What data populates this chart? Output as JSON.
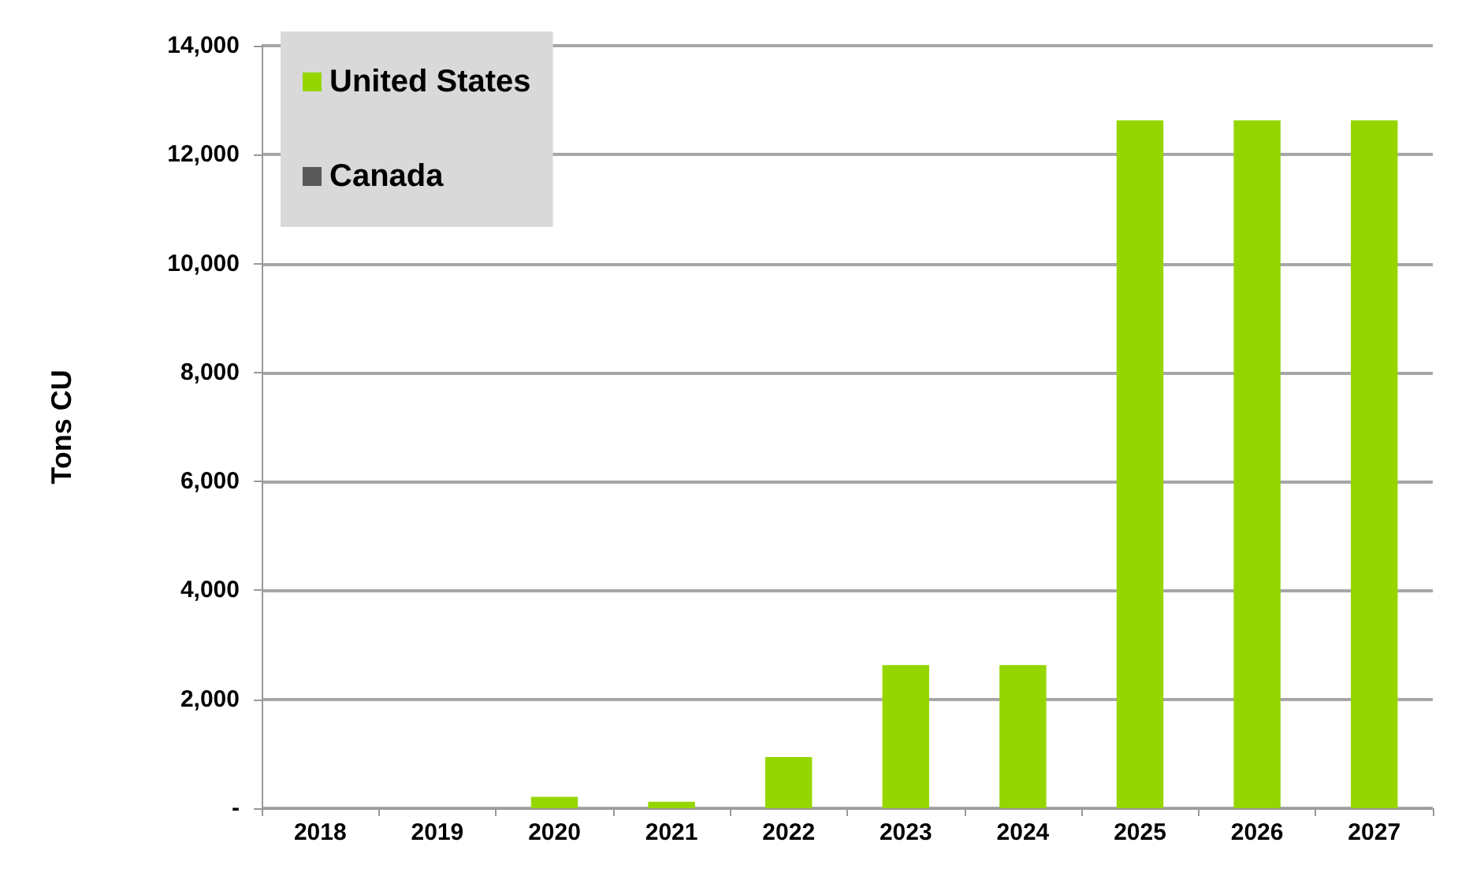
{
  "chart_data": {
    "type": "bar",
    "ylabel": "Tons CU",
    "categories": [
      "2018",
      "2019",
      "2020",
      "2021",
      "2022",
      "2023",
      "2024",
      "2025",
      "2026",
      "2027"
    ],
    "series": [
      {
        "name": "United States",
        "color": "#95d600",
        "values": [
          0,
          0,
          210,
          120,
          940,
          2630,
          2630,
          12630,
          12630,
          12630
        ]
      },
      {
        "name": "Canada",
        "color": "#595959",
        "values": [
          0,
          0,
          0,
          0,
          0,
          0,
          0,
          0,
          0,
          0
        ]
      }
    ],
    "stacked": true,
    "ylim": [
      0,
      14000
    ],
    "yticks": [
      {
        "value": 0,
        "label": "-"
      },
      {
        "value": 2000,
        "label": "2,000"
      },
      {
        "value": 4000,
        "label": "4,000"
      },
      {
        "value": 6000,
        "label": "6,000"
      },
      {
        "value": 8000,
        "label": "8,000"
      },
      {
        "value": 10000,
        "label": "10,000"
      },
      {
        "value": 12000,
        "label": "12,000"
      },
      {
        "value": 14000,
        "label": "14,000"
      }
    ],
    "grid": "y",
    "legend": "top left"
  }
}
